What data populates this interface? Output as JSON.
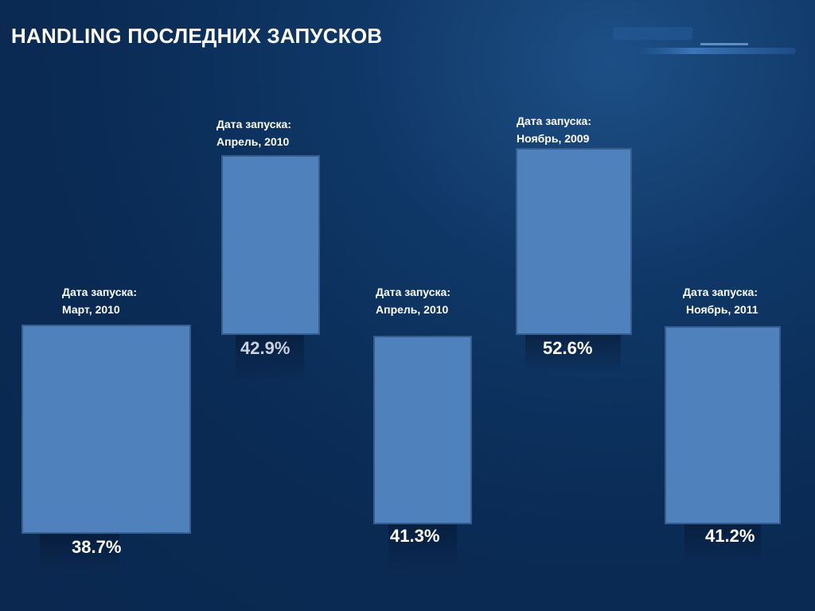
{
  "slide": {
    "title": "HANDLING  ПОСЛЕДНИХ ЗАПУСКОВ"
  },
  "launches": [
    {
      "caption_line1": "Дата запуска:",
      "caption_line2": "Март, 2010",
      "value": "38.7%"
    },
    {
      "caption_line1": "Дата запуска:",
      "caption_line2": "Апрель, 2010",
      "value": "42.9%"
    },
    {
      "caption_line1": "Дата запуска:",
      "caption_line2": "Апрель, 2010",
      "value": "41.3%"
    },
    {
      "caption_line1": "Дата запуска:",
      "caption_line2": "Ноябрь, 2009",
      "value": "52.6%"
    },
    {
      "caption_line1": "Дата запуска:",
      "caption_line2": "Ноябрь, 2011",
      "value": "41.2%"
    }
  ],
  "colors": {
    "bar_fill": "#4f81bd",
    "bar_border": "#385d8a",
    "background": "#0a2b55"
  }
}
